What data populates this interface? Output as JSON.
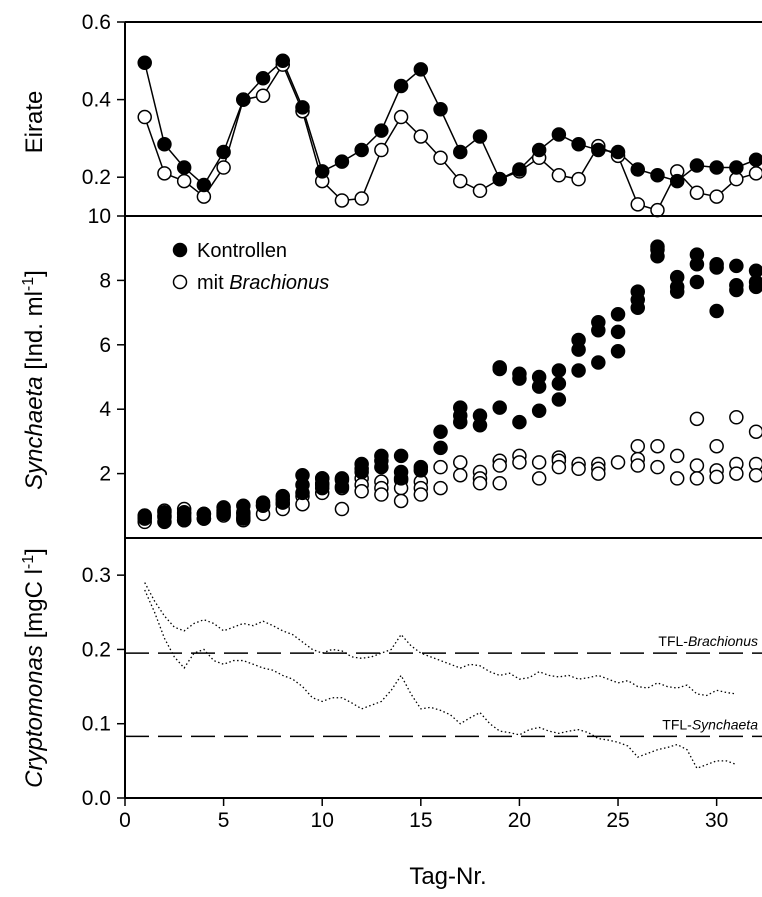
{
  "chart_data": [
    {
      "panel": "top",
      "type": "line",
      "ylabel": "Eirate",
      "ylim": [
        0.1,
        0.6
      ],
      "yticks": [
        0.2,
        0.4,
        0.6
      ],
      "xlim": [
        0,
        32.3
      ],
      "series": [
        {
          "name": "Kontrollen",
          "marker": "filled-circle",
          "x": [
            1,
            2,
            3,
            4,
            5,
            6,
            7,
            8,
            9,
            10,
            11,
            12,
            13,
            14,
            15,
            16,
            17,
            18,
            19,
            20,
            21,
            22,
            23,
            24,
            25,
            26,
            27,
            28,
            29,
            30,
            31,
            32
          ],
          "values": [
            0.495,
            0.285,
            0.225,
            0.18,
            0.265,
            0.4,
            0.455,
            0.5,
            0.38,
            0.215,
            0.24,
            0.27,
            0.32,
            0.435,
            0.478,
            0.375,
            0.265,
            0.305,
            0.195,
            0.22,
            0.27,
            0.31,
            0.285,
            0.27,
            0.265,
            0.22,
            0.205,
            0.19,
            0.23,
            0.225,
            0.225,
            0.245
          ]
        },
        {
          "name": "mit Brachionus",
          "marker": "open-circle",
          "x": [
            1,
            2,
            3,
            4,
            5,
            6,
            7,
            8,
            9,
            10,
            11,
            12,
            13,
            14,
            15,
            16,
            17,
            18,
            19,
            20,
            21,
            22,
            23,
            24,
            25,
            26,
            27,
            28,
            29,
            30,
            31,
            32
          ],
          "values": [
            0.355,
            0.21,
            0.19,
            0.15,
            0.225,
            0.4,
            0.41,
            0.49,
            0.37,
            0.19,
            0.14,
            0.145,
            0.27,
            0.355,
            0.305,
            0.25,
            0.19,
            0.165,
            0.195,
            0.215,
            0.25,
            0.205,
            0.195,
            0.28,
            0.255,
            0.13,
            0.115,
            0.215,
            0.16,
            0.15,
            0.195,
            0.21
          ]
        }
      ]
    },
    {
      "panel": "middle",
      "type": "scatter",
      "ylabel_italic": "Synchaeta",
      "ylabel_rest": "  [Ind. ml",
      "ylabel_sup": "-1",
      "ylabel_end": "]",
      "ylim": [
        0,
        10
      ],
      "yticks": [
        2,
        4,
        6,
        8,
        10
      ],
      "xlim": [
        0,
        32.3
      ],
      "legend_position": "top-left",
      "series": [
        {
          "name": "Kontrollen",
          "marker": "filled-circle",
          "x": [
            1,
            1,
            2,
            2,
            2,
            3,
            3,
            3,
            4,
            4,
            5,
            5,
            5,
            6,
            6,
            6,
            7,
            7,
            8,
            8,
            8,
            9,
            9,
            9,
            10,
            10,
            10,
            11,
            11,
            12,
            12,
            12,
            13,
            13,
            13,
            14,
            14,
            14,
            15,
            15,
            16,
            16,
            17,
            17,
            17,
            18,
            18,
            19,
            19,
            19,
            20,
            20,
            20,
            21,
            21,
            21,
            22,
            22,
            22,
            23,
            23,
            23,
            24,
            24,
            24,
            25,
            25,
            25,
            26,
            26,
            26,
            27,
            27,
            27,
            28,
            28,
            28,
            29,
            29,
            29,
            30,
            30,
            30,
            31,
            31,
            31,
            32,
            32,
            32
          ],
          "values": [
            0.7,
            0.6,
            0.8,
            0.65,
            0.5,
            0.8,
            0.65,
            0.55,
            0.75,
            0.6,
            0.95,
            0.85,
            0.75,
            1.0,
            0.75,
            0.6,
            1.1,
            1.0,
            1.3,
            1.2,
            1.1,
            1.95,
            1.65,
            1.4,
            1.85,
            1.7,
            1.55,
            1.85,
            1.6,
            2.3,
            2.15,
            2.05,
            2.55,
            2.4,
            2.2,
            2.55,
            2.05,
            1.85,
            2.2,
            2.1,
            3.3,
            2.8,
            4.05,
            3.8,
            3.6,
            3.8,
            3.5,
            5.3,
            5.25,
            4.05,
            5.1,
            4.95,
            3.6,
            5.0,
            4.7,
            3.95,
            5.2,
            4.8,
            4.3,
            6.15,
            5.85,
            5.2,
            6.7,
            6.45,
            5.45,
            6.95,
            6.4,
            5.8,
            7.65,
            7.4,
            7.15,
            9.05,
            8.95,
            8.75,
            8.1,
            7.8,
            7.65,
            8.8,
            8.5,
            7.95,
            8.5,
            8.4,
            7.05,
            8.45,
            7.85,
            7.7,
            8.3,
            7.95,
            7.8
          ]
        },
        {
          "name": "mit Brachionus",
          "marker": "open-circle",
          "x": [
            1,
            1,
            2,
            2,
            3,
            3,
            3,
            4,
            4,
            5,
            5,
            6,
            6,
            6,
            7,
            7,
            8,
            8,
            9,
            9,
            10,
            10,
            10,
            11,
            11,
            11,
            12,
            12,
            12,
            13,
            13,
            13,
            14,
            14,
            14,
            15,
            15,
            15,
            16,
            16,
            17,
            17,
            18,
            18,
            18,
            19,
            19,
            19,
            20,
            20,
            21,
            21,
            22,
            22,
            22,
            23,
            23,
            24,
            24,
            24,
            25,
            26,
            26,
            26,
            27,
            27,
            28,
            28,
            29,
            29,
            29,
            30,
            30,
            30,
            31,
            31,
            31,
            32,
            32,
            32
          ],
          "values": [
            0.65,
            0.5,
            0.85,
            0.7,
            0.9,
            0.75,
            0.55,
            0.75,
            0.6,
            0.8,
            0.7,
            0.8,
            0.65,
            0.55,
            1.0,
            0.75,
            1.05,
            0.9,
            1.3,
            1.05,
            1.85,
            1.65,
            1.4,
            1.8,
            1.55,
            0.9,
            1.85,
            1.65,
            1.45,
            1.75,
            1.55,
            1.35,
            1.8,
            1.55,
            1.15,
            1.75,
            1.55,
            1.35,
            2.2,
            1.55,
            2.35,
            1.95,
            2.05,
            1.85,
            1.7,
            2.4,
            2.25,
            1.7,
            2.55,
            2.35,
            2.35,
            1.85,
            2.5,
            2.4,
            2.2,
            2.3,
            2.15,
            2.3,
            2.15,
            2.0,
            2.35,
            2.85,
            2.45,
            2.25,
            2.85,
            2.2,
            2.55,
            1.85,
            3.7,
            2.25,
            1.85,
            2.85,
            2.1,
            1.9,
            3.75,
            2.3,
            2.0,
            3.3,
            2.3,
            1.95
          ]
        }
      ]
    },
    {
      "panel": "bottom",
      "type": "line",
      "ylabel_italic": "Cryptomonas",
      "ylabel_rest": " [mgC l",
      "ylabel_sup": "-1",
      "ylabel_end": "]",
      "xlabel": "Tag-Nr.",
      "ylim": [
        0.0,
        0.35
      ],
      "yticks": [
        0.0,
        0.1,
        0.2,
        0.3
      ],
      "xlim": [
        0,
        32.3
      ],
      "xticks": [
        0,
        5,
        10,
        15,
        20,
        25,
        30
      ],
      "series": [
        {
          "style": "dotted",
          "x": [
            1,
            1.5,
            2,
            2.5,
            3,
            3.5,
            4,
            4.5,
            5,
            5.5,
            6,
            6.5,
            7,
            7.5,
            8,
            8.5,
            9,
            9.5,
            10,
            10.5,
            11,
            11.5,
            12,
            12.5,
            13,
            13.5,
            14,
            14.5,
            15,
            15.5,
            16,
            16.5,
            17,
            17.5,
            18,
            18.5,
            19,
            19.5,
            20,
            20.5,
            21,
            21.5,
            22,
            22.5,
            23,
            23.5,
            24,
            24.5,
            25,
            25.5,
            26,
            26.5,
            27,
            27.5,
            28,
            28.5,
            29,
            29.5,
            30,
            30.5,
            31
          ],
          "values": [
            0.29,
            0.265,
            0.245,
            0.23,
            0.225,
            0.235,
            0.24,
            0.235,
            0.225,
            0.23,
            0.235,
            0.232,
            0.238,
            0.232,
            0.225,
            0.22,
            0.21,
            0.2,
            0.195,
            0.2,
            0.198,
            0.19,
            0.188,
            0.19,
            0.195,
            0.2,
            0.22,
            0.205,
            0.195,
            0.19,
            0.185,
            0.18,
            0.175,
            0.18,
            0.178,
            0.17,
            0.165,
            0.168,
            0.16,
            0.162,
            0.17,
            0.165,
            0.163,
            0.165,
            0.16,
            0.162,
            0.165,
            0.16,
            0.155,
            0.158,
            0.15,
            0.148,
            0.155,
            0.15,
            0.148,
            0.152,
            0.14,
            0.138,
            0.145,
            0.142,
            0.14
          ]
        },
        {
          "style": "dotted",
          "x": [
            1,
            1.5,
            2,
            2.5,
            3,
            3.5,
            4,
            4.5,
            5,
            5.5,
            6,
            6.5,
            7,
            7.5,
            8,
            8.5,
            9,
            9.5,
            10,
            10.5,
            11,
            11.5,
            12,
            12.5,
            13,
            13.5,
            14,
            14.5,
            15,
            15.5,
            16,
            16.5,
            17,
            17.5,
            18,
            18.5,
            19,
            19.5,
            20,
            20.5,
            21,
            21.5,
            22,
            22.5,
            23,
            23.5,
            24,
            24.5,
            25,
            25.5,
            26,
            26.5,
            27,
            27.5,
            28,
            28.5,
            29,
            29.5,
            30,
            30.5,
            31
          ],
          "values": [
            0.28,
            0.25,
            0.215,
            0.19,
            0.175,
            0.195,
            0.2,
            0.185,
            0.18,
            0.185,
            0.185,
            0.18,
            0.175,
            0.172,
            0.165,
            0.16,
            0.15,
            0.135,
            0.13,
            0.135,
            0.135,
            0.128,
            0.12,
            0.125,
            0.13,
            0.145,
            0.165,
            0.14,
            0.12,
            0.122,
            0.118,
            0.112,
            0.1,
            0.108,
            0.115,
            0.1,
            0.09,
            0.088,
            0.085,
            0.092,
            0.095,
            0.09,
            0.087,
            0.09,
            0.092,
            0.088,
            0.08,
            0.078,
            0.075,
            0.07,
            0.055,
            0.06,
            0.065,
            0.068,
            0.072,
            0.065,
            0.04,
            0.045,
            0.05,
            0.05,
            0.045
          ]
        }
      ],
      "reference_lines": [
        {
          "value": 0.195,
          "label_prefix": "TFL-",
          "label_italic": "Brachionus"
        },
        {
          "value": 0.083,
          "label_prefix": "TFL-",
          "label_italic": "Synchaeta"
        }
      ]
    }
  ]
}
